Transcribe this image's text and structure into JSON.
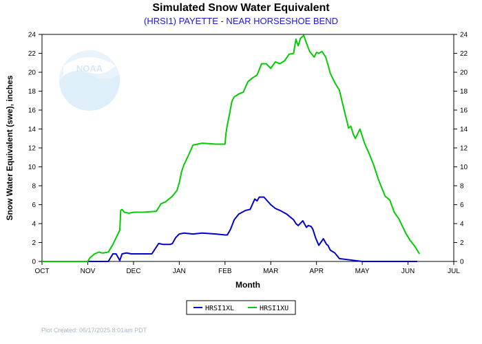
{
  "chart_data": {
    "type": "line",
    "title": "Simulated Snow Water Equivalent",
    "subtitle": "(HRSI1) PAYETTE - NEAR HORSESHOE BEND",
    "xlabel": "Month",
    "ylabel": "Snow Water Equivalent (swe),  inches",
    "xlim": [
      0,
      9
    ],
    "ylim": [
      0,
      24
    ],
    "yticks": [
      0,
      2,
      4,
      6,
      8,
      10,
      12,
      14,
      16,
      18,
      20,
      22,
      24
    ],
    "xtick_positions": [
      0,
      1,
      2,
      3,
      4,
      5,
      6,
      7,
      8,
      9
    ],
    "xtick_labels": [
      "OCT",
      "NOV",
      "DEC",
      "JAN",
      "FEB",
      "MAR",
      "APR",
      "MAY",
      "JUN",
      "JUL"
    ],
    "grid": false,
    "legend_position": "bottom-center",
    "series": [
      {
        "name": "HRSI1XL",
        "color": "#0000cc",
        "x": [
          0,
          1.2,
          1.45,
          1.55,
          1.62,
          1.7,
          1.75,
          1.85,
          1.95,
          2.1,
          2.3,
          2.4,
          2.55,
          2.65,
          2.8,
          2.85,
          2.92,
          3.0,
          3.1,
          3.3,
          3.5,
          3.8,
          4.0,
          4.05,
          4.12,
          4.2,
          4.3,
          4.45,
          4.55,
          4.65,
          4.7,
          4.75,
          4.85,
          5.0,
          5.1,
          5.2,
          5.35,
          5.5,
          5.55,
          5.6,
          5.7,
          5.78,
          5.82,
          5.88,
          5.92,
          5.98,
          6.05,
          6.15,
          6.22,
          6.25,
          6.3,
          6.4,
          6.5,
          7.0,
          8.2
        ],
        "values": [
          0,
          0,
          0,
          0.8,
          0.8,
          0.1,
          0.8,
          0.9,
          0.8,
          0.8,
          0.8,
          0.8,
          1.9,
          1.8,
          1.8,
          1.9,
          2.5,
          2.9,
          3.0,
          2.9,
          3.0,
          2.9,
          2.8,
          2.8,
          3.4,
          4.4,
          5.0,
          5.4,
          5.5,
          6.6,
          6.4,
          6.8,
          6.8,
          6.0,
          5.6,
          5.4,
          5.0,
          4.4,
          4.0,
          3.8,
          4.3,
          3.6,
          3.8,
          3.7,
          3.4,
          2.5,
          1.7,
          2.4,
          1.8,
          1.7,
          1.2,
          0.9,
          0.3,
          0,
          0
        ]
      },
      {
        "name": "HRSI1XU",
        "color": "#00cc00",
        "x": [
          0,
          1.0,
          1.05,
          1.15,
          1.25,
          1.3,
          1.35,
          1.45,
          1.55,
          1.62,
          1.7,
          1.72,
          1.75,
          1.8,
          1.9,
          2.0,
          2.2,
          2.5,
          2.6,
          2.7,
          2.8,
          2.85,
          2.95,
          3.0,
          3.05,
          3.1,
          3.2,
          3.3,
          3.4,
          3.5,
          3.8,
          4.0,
          4.02,
          4.05,
          4.1,
          4.15,
          4.2,
          4.3,
          4.4,
          4.5,
          4.6,
          4.7,
          4.8,
          4.9,
          5.0,
          5.1,
          5.2,
          5.3,
          5.4,
          5.5,
          5.55,
          5.6,
          5.65,
          5.68,
          5.72,
          5.78,
          5.85,
          5.95,
          6.0,
          6.05,
          6.12,
          6.2,
          6.25,
          6.3,
          6.4,
          6.5,
          6.6,
          6.65,
          6.7,
          6.75,
          6.8,
          6.85,
          6.95,
          7.05,
          7.15,
          7.25,
          7.35,
          7.5,
          7.6,
          7.7,
          7.8,
          7.95,
          8.05,
          8.15,
          8.25
        ],
        "values": [
          0,
          0,
          0.4,
          0.8,
          1.0,
          0.9,
          0.9,
          1.0,
          1.8,
          2.5,
          3.3,
          5.4,
          5.5,
          5.2,
          5.1,
          5.2,
          5.2,
          5.3,
          6.1,
          6.3,
          6.7,
          6.9,
          7.5,
          8.3,
          9.5,
          10.2,
          11.2,
          12.3,
          12.4,
          12.5,
          12.4,
          12.4,
          13.5,
          14.4,
          15.6,
          16.9,
          17.4,
          17.7,
          17.9,
          19.0,
          19.4,
          19.7,
          20.9,
          20.9,
          20.4,
          21.1,
          20.9,
          21.2,
          21.9,
          22.0,
          23.5,
          22.8,
          23.6,
          23.7,
          23.9,
          23.1,
          22.2,
          21.6,
          22.1,
          22.0,
          22.2,
          21.6,
          20.8,
          19.9,
          18.9,
          18.1,
          16.1,
          15.1,
          14.1,
          14.3,
          13.5,
          13.0,
          14.0,
          12.5,
          11.4,
          10.2,
          8.7,
          6.9,
          6.5,
          5.2,
          4.5,
          3.0,
          2.2,
          1.6,
          0.8
        ]
      }
    ]
  },
  "legend": {
    "items": [
      {
        "label": "HRSI1XL",
        "color": "#0000cc"
      },
      {
        "label": "HRSI1XU",
        "color": "#00cc00"
      }
    ]
  },
  "watermark": {
    "text": "NOAA"
  },
  "footer": {
    "text": "Plot Created: 06/17/2025 8:01am PDT"
  }
}
